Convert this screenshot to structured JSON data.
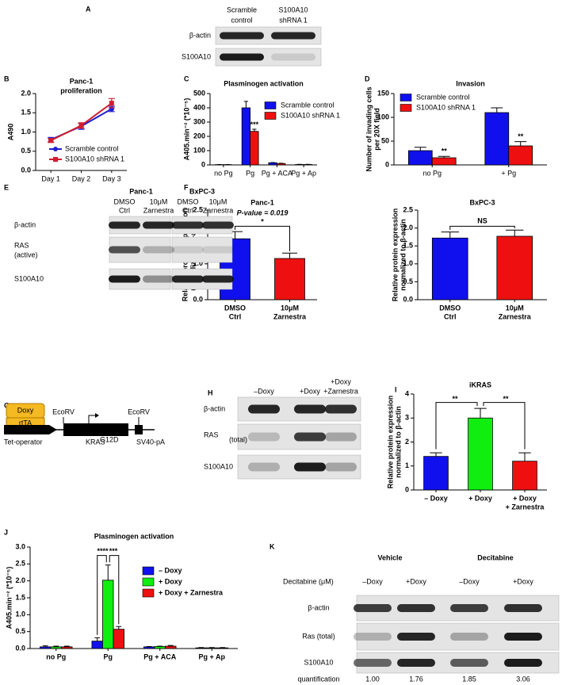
{
  "panels": [
    "A",
    "B",
    "C",
    "D",
    "E",
    "F",
    "G",
    "H",
    "I",
    "J",
    "K"
  ],
  "chart_data": [
    {
      "type": "line",
      "title": [
        "Panc-1",
        "proliferation"
      ],
      "ylabel": "A490",
      "categories": [
        "Day 1",
        "Day 2",
        "Day 3"
      ],
      "series": [
        {
          "name": "Scramble control",
          "color": "#1f1fd0",
          "marker": "circle",
          "values": [
            0.8,
            1.15,
            1.6
          ],
          "errors": [
            0.06,
            0.08,
            0.07
          ]
        },
        {
          "name": "S100A10 shRNA 1",
          "color": "#d01f2f",
          "marker": "square",
          "values": [
            0.78,
            1.17,
            1.75
          ],
          "errors": [
            0.05,
            0.07,
            0.12
          ]
        }
      ],
      "ylim": [
        0,
        2
      ],
      "yticks": [
        {
          "value": 0,
          "label": "0.0"
        },
        {
          "value": 0.5,
          "label": "0.5"
        },
        {
          "value": 1,
          "label": "1.0"
        },
        {
          "value": 1.5,
          "label": "1.5"
        },
        {
          "value": 2,
          "label": "2.0"
        }
      ],
      "legend": "lower right"
    },
    {
      "type": "bar",
      "title": "Plasminogen activation",
      "ylabel": "A405.min⁻² (*10⁻⁵)",
      "categories": [
        "no Pg",
        "Pg",
        "Pg + ACA",
        "Pg + Ap"
      ],
      "series": [
        {
          "name": "Scramble control",
          "color": "#1010ee",
          "values": [
            2,
            400,
            15,
            3
          ],
          "errors": [
            1,
            45,
            2,
            1
          ]
        },
        {
          "name": "S100A10 shRNA 1",
          "color": "#ee1010",
          "values": [
            2,
            235,
            10,
            3
          ],
          "errors": [
            1,
            15,
            2,
            1
          ]
        }
      ],
      "ylim": [
        0,
        500
      ],
      "yticks": [
        0,
        100,
        200,
        300,
        400,
        500
      ],
      "annotations": [
        "***"
      ],
      "legend": "upper right"
    },
    {
      "type": "bar",
      "title": "Invasion",
      "ylabel": [
        "Number of invading cells",
        "per 20X field"
      ],
      "categories": [
        "no Pg",
        "+ Pg"
      ],
      "series": [
        {
          "name": "Scramble control",
          "color": "#1010ee",
          "values": [
            30,
            110
          ],
          "errors": [
            7,
            10
          ]
        },
        {
          "name": "S100A10 shRNA 1",
          "color": "#ee1010",
          "values": [
            15,
            40
          ],
          "errors": [
            3,
            9
          ]
        }
      ],
      "ylim": [
        0,
        150
      ],
      "yticks": [
        0,
        50,
        100,
        150
      ],
      "annotations": [
        "**",
        "**"
      ],
      "legend": "upper left"
    },
    {
      "type": "bar",
      "title": "Panc-1",
      "ylabel": [
        "Relative protein expression",
        "normalized to β-actin"
      ],
      "categories": [
        [
          "DMSO",
          "Ctrl"
        ],
        [
          "10μM",
          "Zarnestra"
        ]
      ],
      "values": [
        1.7,
        1.15
      ],
      "errors": [
        0.2,
        0.15
      ],
      "colors": [
        "#1010ee",
        "#ee1010"
      ],
      "ylim": [
        0,
        2.5
      ],
      "yticks": [
        {
          "value": 0,
          "label": "0.0"
        },
        {
          "value": 0.5,
          "label": "0.5"
        },
        {
          "value": 1,
          "label": "1.0"
        },
        {
          "value": 1.5,
          "label": "1.5"
        },
        {
          "value": 2,
          "label": "2.0"
        },
        {
          "value": 2.5,
          "label": "2.5"
        }
      ],
      "annotations": [
        "P-value = 0.019",
        "*"
      ]
    },
    {
      "type": "bar",
      "title": "BxPC-3",
      "ylabel": [
        "Relative protein expression",
        "normalized to β-actin"
      ],
      "categories": [
        [
          "DMSO",
          "Ctrl"
        ],
        [
          "10μM",
          "Zarnestra"
        ]
      ],
      "values": [
        1.72,
        1.77
      ],
      "errors": [
        0.17,
        0.17
      ],
      "colors": [
        "#1010ee",
        "#ee1010"
      ],
      "ylim": [
        0,
        2.5
      ],
      "yticks": [
        {
          "value": 0,
          "label": "0.0"
        },
        {
          "value": 0.5,
          "label": "0.5"
        },
        {
          "value": 1,
          "label": "1.0"
        },
        {
          "value": 1.5,
          "label": "1.5"
        },
        {
          "value": 2,
          "label": "2.0"
        },
        {
          "value": 2.5,
          "label": "2.5"
        }
      ],
      "annotations": [
        "NS"
      ]
    },
    {
      "type": "bar",
      "title": "iKRAS",
      "ylabel": [
        "Relative protein expression",
        "normalized to β-actin"
      ],
      "categories": [
        "– Doxy",
        "+ Doxy",
        [
          "+ Doxy",
          "+ Zarnestra"
        ]
      ],
      "values": [
        1.4,
        3.0,
        1.2
      ],
      "errors": [
        0.15,
        0.4,
        0.35
      ],
      "colors": [
        "#1010ee",
        "#10ee10",
        "#ee1010"
      ],
      "ylim": [
        0,
        4
      ],
      "yticks": [
        0,
        1,
        2,
        3,
        4
      ],
      "annotations": [
        "**",
        "**"
      ]
    },
    {
      "type": "bar",
      "title": "Plasminogen activation",
      "ylabel": "A405.min⁻² (*10⁻⁵)",
      "categories": [
        "no Pg",
        "Pg",
        "Pg + ACA",
        "Pg + Ap"
      ],
      "series": [
        {
          "name": "– Doxy",
          "color": "#1010ee",
          "values": [
            0.05,
            0.22,
            0.05,
            0.02
          ],
          "errors": [
            0.03,
            0.1,
            0.01,
            0.01
          ]
        },
        {
          "name": "+ Doxy",
          "color": "#10ee10",
          "values": [
            0.05,
            2.02,
            0.06,
            0.02
          ],
          "errors": [
            0.02,
            0.45,
            0.01,
            0.01
          ]
        },
        {
          "name": "+ Doxy + Zarnestra",
          "color": "#ee1010",
          "values": [
            0.05,
            0.57,
            0.07,
            0.02
          ],
          "errors": [
            0.02,
            0.08,
            0.02,
            0.01
          ]
        }
      ],
      "ylim": [
        0,
        3
      ],
      "yticks": [
        {
          "value": 0,
          "label": "0.0"
        },
        {
          "value": 0.5,
          "label": "0.5"
        },
        {
          "value": 1,
          "label": "1.0"
        },
        {
          "value": 1.5,
          "label": "1.5"
        },
        {
          "value": 2,
          "label": "2.0"
        },
        {
          "value": 2.5,
          "label": "2.5"
        },
        {
          "value": 3,
          "label": "3.0"
        }
      ],
      "annotations": [
        "****",
        "***"
      ],
      "legend": "upper right"
    }
  ],
  "blots": {
    "A": {
      "lanes": [
        [
          "Scramble",
          "control"
        ],
        [
          "S100A10",
          "shRNA 1"
        ]
      ],
      "rows": [
        "β-actin",
        "S100A10"
      ]
    },
    "E": {
      "groups": [
        "Panc-1",
        "BxPC-3"
      ],
      "lanes": [
        [
          "DMSO",
          "Ctrl"
        ],
        [
          "10μM",
          "Zarnestra"
        ],
        [
          "DMSO",
          "Ctrl"
        ],
        [
          "10μM",
          "Zarnestra"
        ]
      ],
      "rows": [
        "β-actin",
        [
          "RAS",
          "(active)"
        ],
        "S100A10"
      ]
    },
    "H": {
      "lanes": [
        "–Doxy",
        "+Doxy",
        [
          "+Doxy",
          "+Zarnestra"
        ]
      ],
      "rows": [
        "β-actin",
        [
          "RAS",
          "(total)"
        ],
        "S100A10"
      ]
    },
    "K": {
      "groups": [
        "Vehicle",
        "Decitabine"
      ],
      "treatment_label": "Decitabine (μM)",
      "lanes": [
        "–Doxy",
        "+Doxy",
        "–Doxy",
        "+Doxy"
      ],
      "rows": [
        "β-actin",
        "Ras (total)",
        "S100A10"
      ],
      "quantification_label": "quantification",
      "quantification": [
        "1.00",
        "1.76",
        "1.85",
        "3.06"
      ]
    }
  },
  "diagram": {
    "box": "Doxy",
    "protein": "rtTA",
    "sites": [
      "EcoRV",
      "EcoRV"
    ],
    "operator": "Tet-operator",
    "gene": "KRAS",
    "gene_sup": "G12D",
    "terminator": "SV40-pA"
  }
}
